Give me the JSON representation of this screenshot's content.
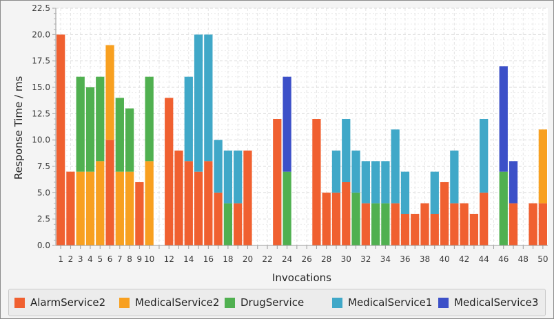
{
  "chart_data": {
    "type": "bar",
    "stacked": true,
    "xlabel": "Invocations",
    "ylabel": "Response Time / ms",
    "ylim": [
      0,
      22.5
    ],
    "ytick_step": 2.5,
    "ytick_labels": [
      "0.0",
      "2.5",
      "5.0",
      "7.5",
      "10.0",
      "12.5",
      "15.0",
      "17.5",
      "20.0",
      "22.5"
    ],
    "categories": [
      1,
      2,
      3,
      4,
      5,
      6,
      7,
      8,
      9,
      10,
      11,
      12,
      13,
      14,
      15,
      16,
      17,
      18,
      19,
      20,
      21,
      22,
      23,
      24,
      25,
      26,
      27,
      28,
      29,
      30,
      31,
      32,
      33,
      34,
      35,
      36,
      37,
      38,
      39,
      40,
      41,
      42,
      43,
      44,
      45,
      46,
      47,
      48,
      49,
      50
    ],
    "xtick_labels": [
      "1",
      "2",
      "3",
      "4",
      "5",
      "6",
      "7",
      "8",
      "9",
      "10",
      "",
      "12",
      "",
      "14",
      "",
      "16",
      "",
      "18",
      "",
      "20",
      "",
      "22",
      "",
      "24",
      "",
      "26",
      "",
      "28",
      "",
      "30",
      "",
      "32",
      "",
      "34",
      "",
      "36",
      "",
      "38",
      "",
      "40",
      "",
      "42",
      "",
      "44",
      "",
      "46",
      "",
      "48",
      "",
      "50"
    ],
    "grid": true,
    "legend_position": "bottom",
    "series": [
      {
        "name": "AlarmService2",
        "color": "#f06030",
        "values": [
          20,
          7,
          0,
          0,
          0,
          10,
          0,
          0,
          6,
          0,
          0,
          14,
          9,
          8,
          7,
          8,
          5,
          0,
          4,
          9,
          0,
          0,
          12,
          0,
          0,
          0,
          12,
          5,
          5,
          6,
          0,
          4,
          0,
          0,
          4,
          3,
          3,
          4,
          3,
          6,
          4,
          4,
          3,
          5,
          0,
          0,
          4,
          0,
          4,
          4
        ]
      },
      {
        "name": "MedicalService2",
        "color": "#f8a020",
        "values": [
          0,
          0,
          7,
          7,
          8,
          9,
          7,
          7,
          0,
          8,
          0,
          0,
          0,
          0,
          0,
          0,
          0,
          0,
          0,
          0,
          0,
          0,
          0,
          0,
          0,
          0,
          0,
          0,
          0,
          0,
          0,
          0,
          0,
          0,
          0,
          0,
          0,
          0,
          0,
          0,
          0,
          0,
          0,
          0,
          0,
          0,
          0,
          0,
          0,
          7
        ]
      },
      {
        "name": "DrugService",
        "color": "#50b050",
        "values": [
          0,
          0,
          9,
          8,
          8,
          0,
          7,
          6,
          0,
          8,
          0,
          0,
          0,
          0,
          0,
          0,
          0,
          4,
          0,
          0,
          0,
          0,
          0,
          7,
          0,
          0,
          0,
          0,
          0,
          0,
          5,
          0,
          4,
          4,
          0,
          0,
          0,
          0,
          0,
          0,
          0,
          0,
          0,
          0,
          0,
          7,
          0,
          0,
          0,
          0
        ]
      },
      {
        "name": "MedicalService1",
        "color": "#40a8c8",
        "values": [
          0,
          0,
          0,
          0,
          0,
          0,
          0,
          0,
          0,
          0,
          0,
          0,
          0,
          8,
          13,
          12,
          5,
          5,
          5,
          0,
          0,
          0,
          0,
          0,
          0,
          0,
          0,
          0,
          4,
          6,
          4,
          4,
          4,
          4,
          7,
          4,
          0,
          0,
          4,
          0,
          5,
          0,
          0,
          7,
          0,
          0,
          0,
          0,
          0,
          0
        ]
      },
      {
        "name": "MedicalService3",
        "color": "#3c50c8",
        "values": [
          0,
          0,
          0,
          0,
          0,
          0,
          0,
          0,
          0,
          0,
          0,
          0,
          0,
          0,
          0,
          0,
          0,
          0,
          0,
          0,
          0,
          0,
          0,
          9,
          0,
          0,
          0,
          0,
          0,
          0,
          0,
          0,
          0,
          0,
          0,
          0,
          0,
          0,
          0,
          0,
          0,
          0,
          0,
          0,
          0,
          10,
          4,
          0,
          0,
          0
        ]
      }
    ]
  }
}
